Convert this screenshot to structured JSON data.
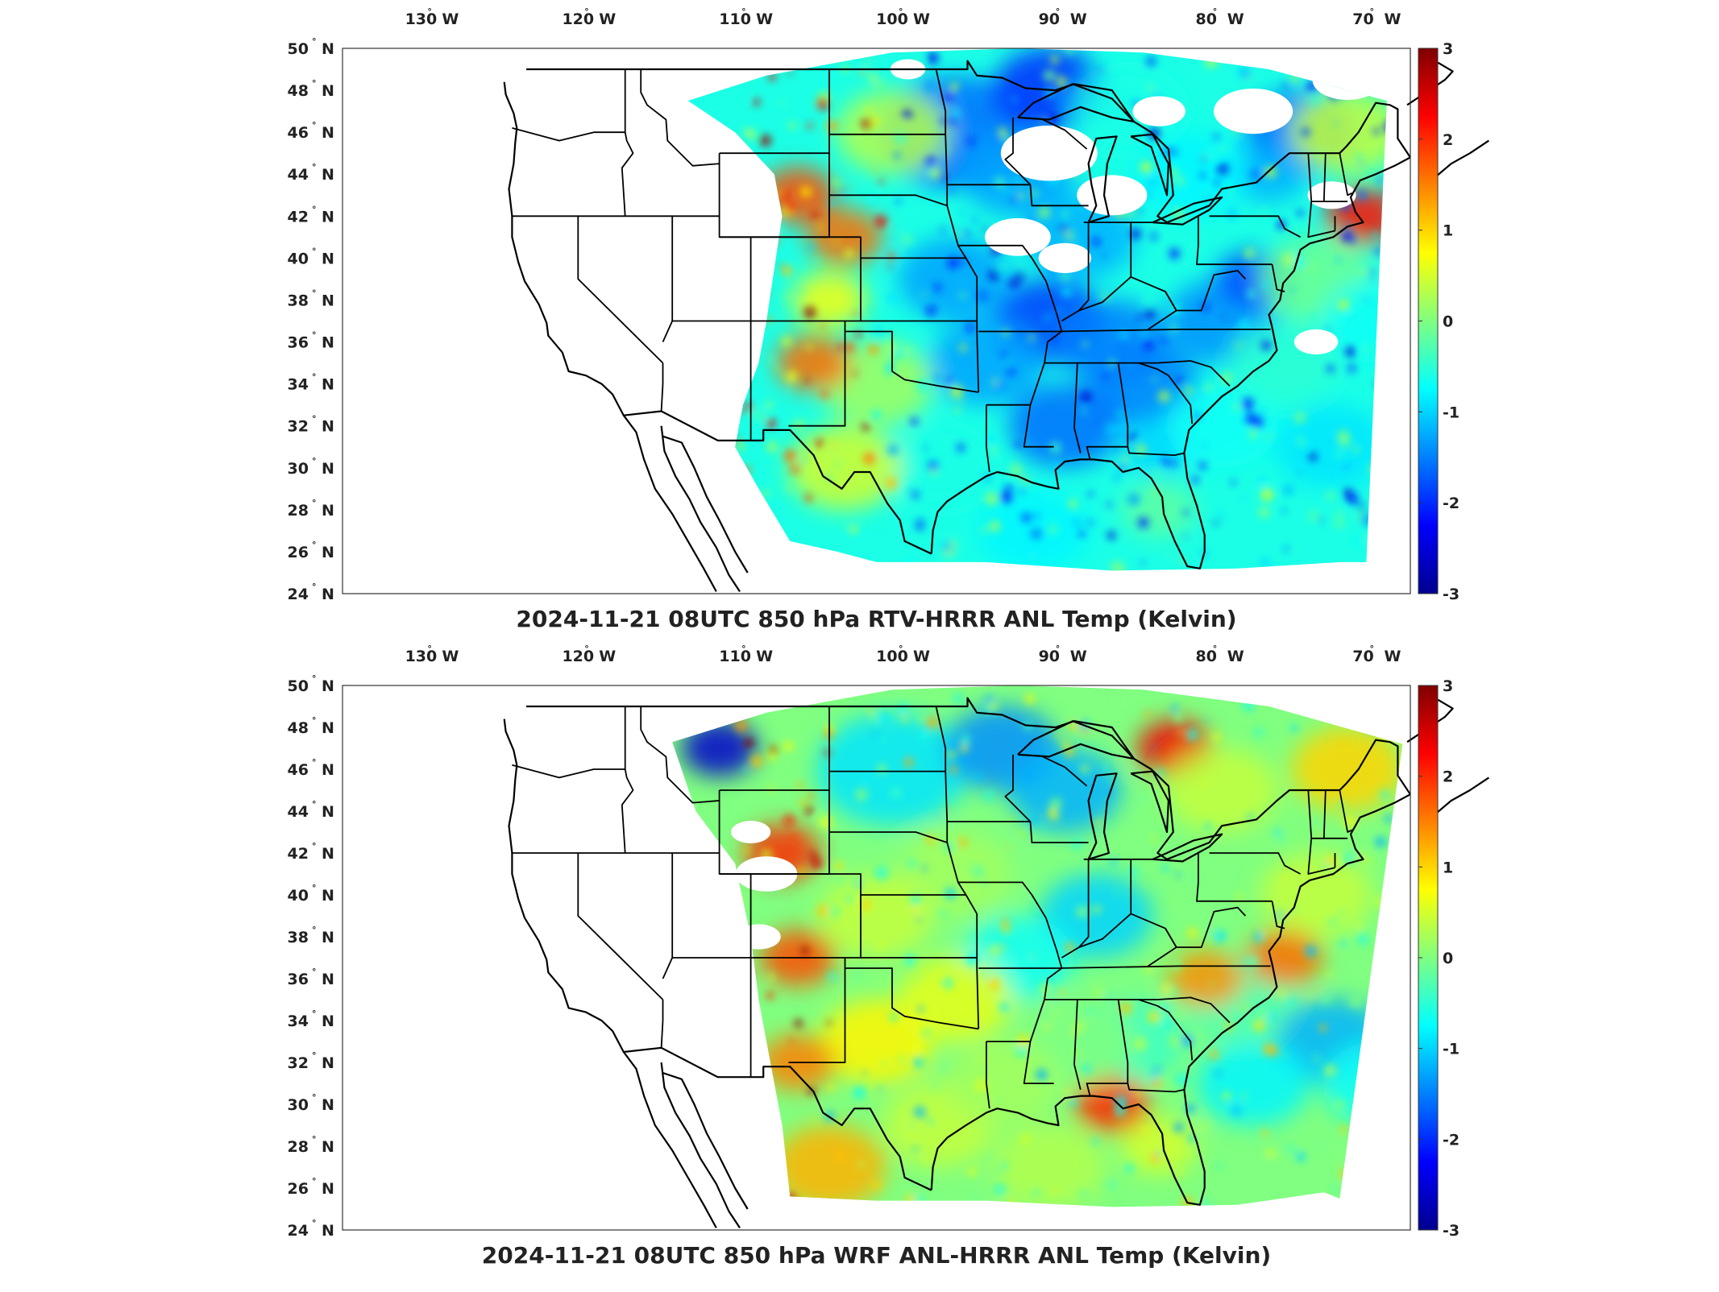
{
  "colors": {
    "colormap": [
      "#00008f",
      "#0000ff",
      "#0080ff",
      "#00ffff",
      "#80ff80",
      "#ffff00",
      "#ff8000",
      "#ff0000",
      "#800000"
    ],
    "land_outline": "#000000",
    "no_data": "#ffffff"
  },
  "axes": {
    "lon_labels": [
      "130",
      "120",
      "110",
      "100",
      "90",
      "80",
      "70"
    ],
    "lon_hemisphere": "W",
    "lat_labels": [
      "50",
      "48",
      "46",
      "44",
      "42",
      "40",
      "38",
      "36",
      "34",
      "32",
      "30",
      "28",
      "26",
      "24"
    ],
    "lat_hemisphere": "N",
    "degree_symbol": "°"
  },
  "colorbar": {
    "ticks": [
      "3",
      "2",
      "1",
      "0",
      "-1",
      "-2",
      "-3"
    ],
    "range": [
      -3,
      3
    ]
  },
  "panels": [
    {
      "title": "2024-11-21 08UTC 850 hPa RTV-HRRR ANL Temp (Kelvin)",
      "pattern": "rtv"
    },
    {
      "title": "2024-11-21 08UTC 850 hPa WRF ANL-HRRR ANL Temp (Kelvin)",
      "pattern": "wrf"
    }
  ]
}
